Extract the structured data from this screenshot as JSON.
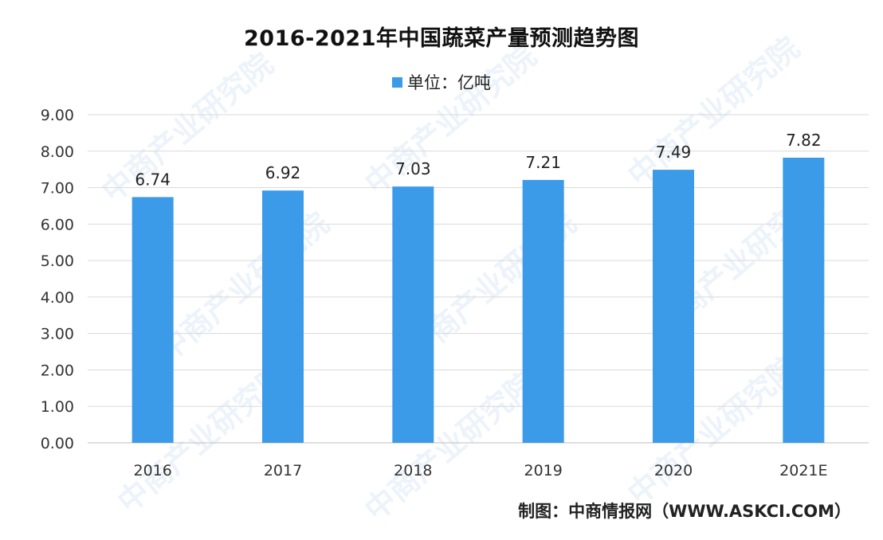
{
  "chart_data": {
    "type": "bar",
    "title": "2016-2021年中国蔬菜产量预测趋势图",
    "legend": "单位：亿吨",
    "categories": [
      "2016",
      "2017",
      "2018",
      "2019",
      "2020",
      "2021E"
    ],
    "series": [
      {
        "name": "单位：亿吨",
        "values": [
          6.74,
          6.92,
          7.03,
          7.21,
          7.49,
          7.82
        ]
      }
    ],
    "value_labels": [
      "6.74",
      "6.92",
      "7.03",
      "7.21",
      "7.49",
      "7.82"
    ],
    "y_ticks": [
      "0.00",
      "1.00",
      "2.00",
      "3.00",
      "4.00",
      "5.00",
      "6.00",
      "7.00",
      "8.00",
      "9.00"
    ],
    "ylim": [
      0,
      9
    ],
    "grid": true,
    "legend_position": "top",
    "bar_color": "#3b9be8"
  },
  "source": "制图：中商情报网（WWW.ASKCI.COM）",
  "watermark": "中商产业研究院"
}
